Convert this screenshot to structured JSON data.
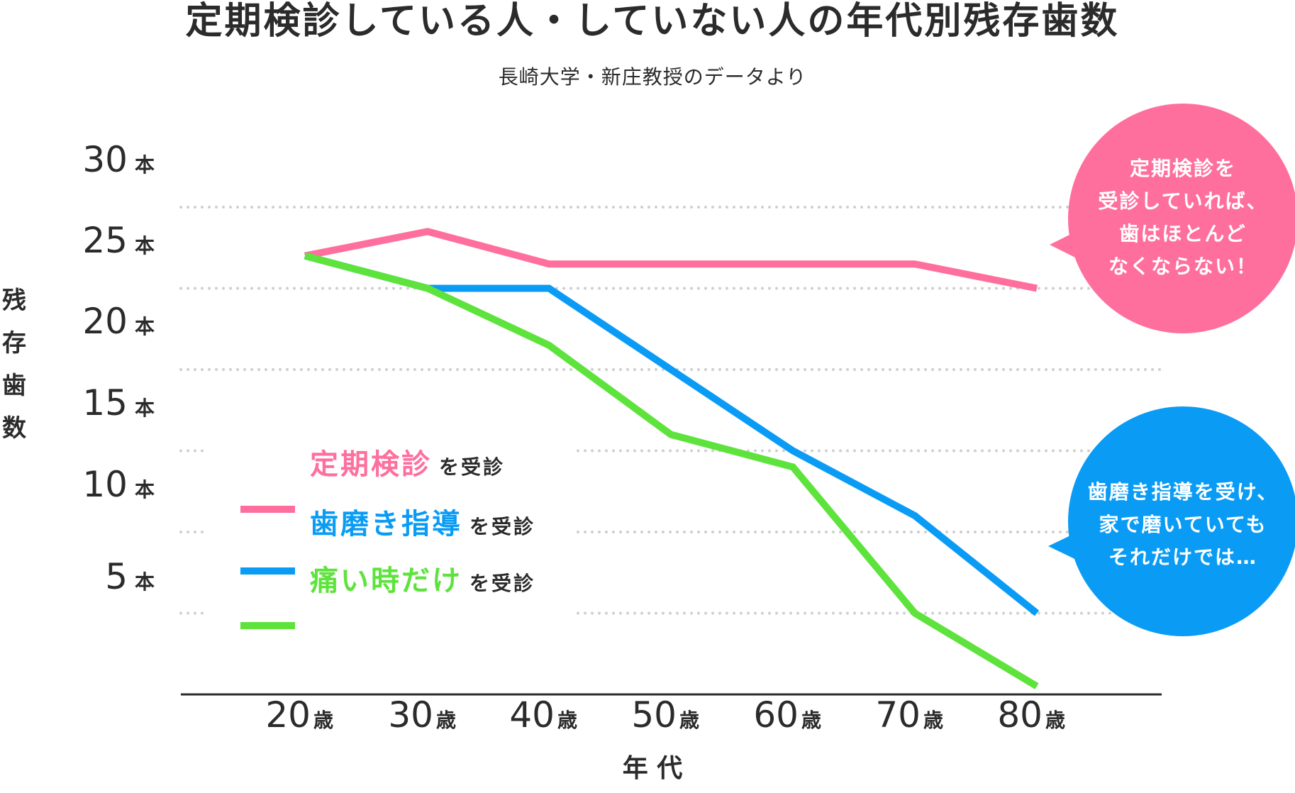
{
  "title": "定期検診している人・していない人の年代別残存歯数",
  "subtitle": "長崎大学・新庄教授のデータより",
  "chart_data": {
    "type": "line",
    "title": "定期検診している人・していない人の年代別残存歯数",
    "subtitle": "長崎大学・新庄教授のデータより",
    "xlabel": "年 代",
    "ylabel": [
      "残",
      "存",
      "歯",
      "数"
    ],
    "y_unit": "本",
    "x_unit": "歳",
    "categories": [
      "20",
      "30",
      "40",
      "50",
      "60",
      "70",
      "80"
    ],
    "yticks": [
      5,
      10,
      15,
      20,
      25,
      30
    ],
    "ylim": [
      0,
      30
    ],
    "grid": true,
    "series": [
      {
        "name_main": "定期検診",
        "name_suffix": "を受診",
        "color": "#ff6f9e",
        "values": [
          27,
          28.5,
          26.5,
          26.5,
          26.5,
          26.5,
          25
        ]
      },
      {
        "name_main": "歯磨き指導",
        "name_suffix": "を受診",
        "color": "#0a9cf5",
        "values": [
          27,
          25,
          25,
          20,
          15,
          11,
          5
        ]
      },
      {
        "name_main": "痛い時だけ",
        "name_suffix": "を受診",
        "color": "#5ee33c",
        "values": [
          27,
          25,
          21.5,
          16,
          14,
          5,
          0.5
        ]
      }
    ],
    "legend_position": "bottom-left",
    "annotations": [
      {
        "color": "#ff6f9e",
        "lines": [
          "定期検診を",
          "受診していれば、",
          "歯はほとんど",
          "なくならない！"
        ]
      },
      {
        "color": "#0a9cf5",
        "lines": [
          "歯磨き指導を受け、",
          "家で磨いていても",
          "それだけでは…"
        ]
      }
    ]
  }
}
